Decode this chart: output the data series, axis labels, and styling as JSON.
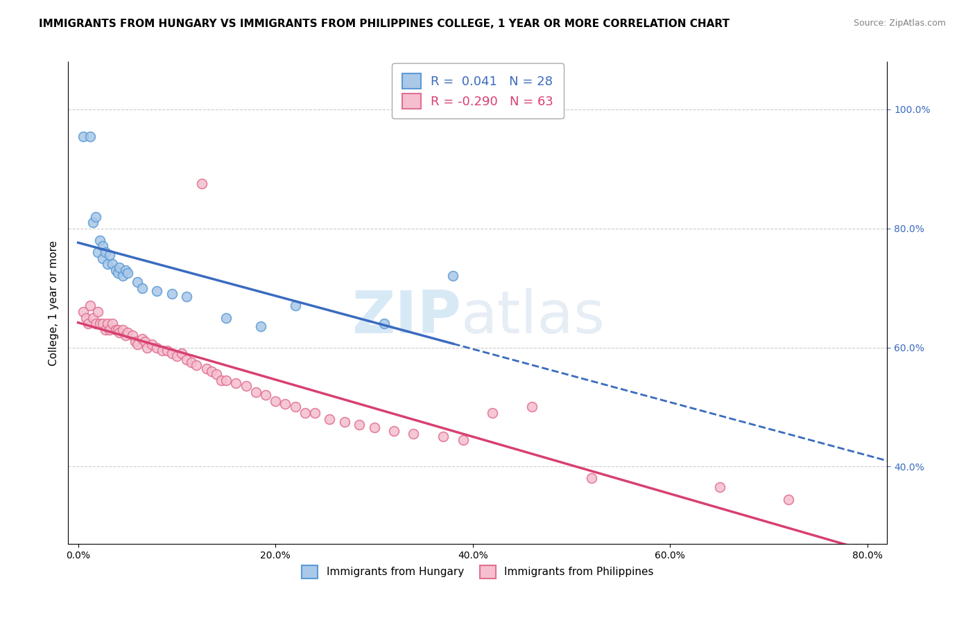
{
  "title": "IMMIGRANTS FROM HUNGARY VS IMMIGRANTS FROM PHILIPPINES COLLEGE, 1 YEAR OR MORE CORRELATION CHART",
  "source": "Source: ZipAtlas.com",
  "ylabel": "College, 1 year or more",
  "x_tick_labels": [
    "0.0%",
    "20.0%",
    "40.0%",
    "60.0%",
    "80.0%"
  ],
  "x_tick_values": [
    0.0,
    0.2,
    0.4,
    0.6,
    0.8
  ],
  "y_tick_labels": [
    "40.0%",
    "60.0%",
    "80.0%",
    "100.0%"
  ],
  "y_tick_values": [
    0.4,
    0.6,
    0.8,
    1.0
  ],
  "xlim": [
    -0.01,
    0.82
  ],
  "ylim": [
    0.27,
    1.08
  ],
  "hungary_color": "#aac8e8",
  "hungary_edge": "#5b9bd5",
  "philippines_color": "#f5bfcf",
  "philippines_edge": "#e07090",
  "trend_hungary_color": "#3a6bbf",
  "trend_philippines_color": "#d84070",
  "R_hungary": 0.041,
  "N_hungary": 28,
  "R_philippines": -0.29,
  "N_philippines": 63,
  "legend_label_hungary": "Immigrants from Hungary",
  "legend_label_philippines": "Immigrants from Philippines",
  "hungary_x": [
    0.005,
    0.012,
    0.015,
    0.018,
    0.02,
    0.022,
    0.025,
    0.025,
    0.028,
    0.03,
    0.032,
    0.035,
    0.038,
    0.04,
    0.042,
    0.045,
    0.048,
    0.05,
    0.06,
    0.065,
    0.08,
    0.095,
    0.11,
    0.15,
    0.185,
    0.22,
    0.31,
    0.38
  ],
  "hungary_y": [
    0.955,
    0.955,
    0.81,
    0.82,
    0.76,
    0.78,
    0.75,
    0.77,
    0.76,
    0.74,
    0.755,
    0.74,
    0.73,
    0.725,
    0.735,
    0.72,
    0.73,
    0.725,
    0.71,
    0.7,
    0.695,
    0.69,
    0.685,
    0.65,
    0.635,
    0.67,
    0.64,
    0.72
  ],
  "philippines_x": [
    0.005,
    0.008,
    0.01,
    0.012,
    0.015,
    0.018,
    0.02,
    0.022,
    0.025,
    0.028,
    0.03,
    0.032,
    0.035,
    0.038,
    0.04,
    0.042,
    0.045,
    0.048,
    0.05,
    0.055,
    0.058,
    0.06,
    0.065,
    0.068,
    0.07,
    0.075,
    0.08,
    0.085,
    0.09,
    0.095,
    0.1,
    0.105,
    0.11,
    0.115,
    0.12,
    0.125,
    0.13,
    0.135,
    0.14,
    0.145,
    0.15,
    0.16,
    0.17,
    0.18,
    0.19,
    0.2,
    0.21,
    0.22,
    0.23,
    0.24,
    0.255,
    0.27,
    0.285,
    0.3,
    0.32,
    0.34,
    0.37,
    0.39,
    0.42,
    0.46,
    0.52,
    0.65,
    0.72
  ],
  "philippines_y": [
    0.66,
    0.65,
    0.64,
    0.67,
    0.65,
    0.64,
    0.66,
    0.64,
    0.64,
    0.63,
    0.64,
    0.63,
    0.64,
    0.63,
    0.63,
    0.625,
    0.63,
    0.62,
    0.625,
    0.62,
    0.61,
    0.605,
    0.615,
    0.61,
    0.6,
    0.605,
    0.6,
    0.595,
    0.595,
    0.59,
    0.585,
    0.59,
    0.58,
    0.575,
    0.57,
    0.875,
    0.565,
    0.56,
    0.555,
    0.545,
    0.545,
    0.54,
    0.535,
    0.525,
    0.52,
    0.51,
    0.505,
    0.5,
    0.49,
    0.49,
    0.48,
    0.475,
    0.47,
    0.465,
    0.46,
    0.455,
    0.45,
    0.445,
    0.49,
    0.5,
    0.38,
    0.365,
    0.345
  ],
  "watermark_zip": "ZIP",
  "watermark_atlas": "atlas",
  "background_color": "#ffffff",
  "grid_color": "#cccccc",
  "title_fontsize": 11,
  "axis_fontsize": 11,
  "tick_fontsize": 10,
  "marker_size": 100,
  "marker_linewidth": 1.2
}
